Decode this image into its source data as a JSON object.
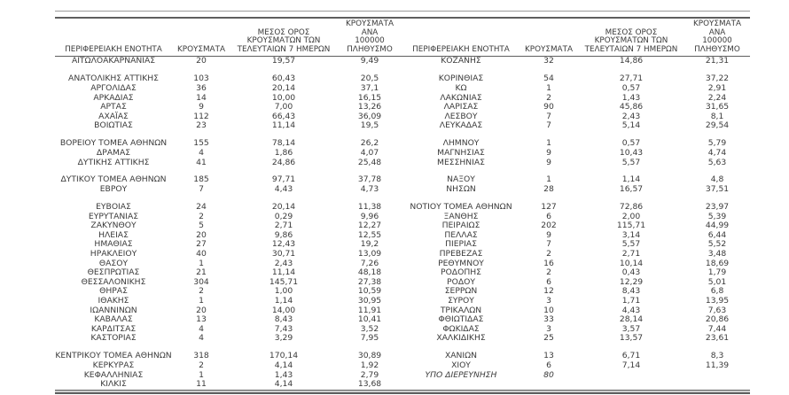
{
  "page": {
    "background": "#ffffff",
    "text_color": "#3a3a3a",
    "rule_color": "#5e5e5e"
  },
  "table": {
    "headers": {
      "region": "ΠΕΡΙΦΕΡΕΙΑΚΗ ΕΝΟΤΗΤΑ",
      "cases": "ΚΡΟΥΣΜΑΤΑ",
      "avg7": "ΜΕΣΟΣ ΟΡΟΣ\nΚΡΟΥΣΜΑΤΩΝ ΤΩΝ\nΤΕΛΕΥΤΑΙΩΝ 7 ΗΜΕΡΩΝ",
      "per100k": "ΚΡΟΥΣΜΑΤΑ ΑΝΑ\n100000 ΠΛΗΘΥΣΜΟ"
    },
    "rows": [
      {
        "left": [
          "ΑΙΤΩΛΟΑΚΑΡΝΑΝΙΑΣ",
          "20",
          "19,57",
          "9,49"
        ],
        "right": [
          "ΚΟΖΑΝΗΣ",
          "32",
          "14,86",
          "21,31"
        ]
      },
      {
        "spacer": true
      },
      {
        "left": [
          "ΑΝΑΤΟΛΙΚΗΣ ΑΤΤΙΚΗΣ",
          "103",
          "60,43",
          "20,5"
        ],
        "right": [
          "ΚΟΡΙΝΘΙΑΣ",
          "54",
          "27,71",
          "37,22"
        ]
      },
      {
        "left": [
          "ΑΡΓΟΛΙΔΑΣ",
          "36",
          "20,14",
          "37,1"
        ],
        "right": [
          "ΚΩ",
          "1",
          "0,57",
          "2,91"
        ]
      },
      {
        "left": [
          "ΑΡΚΑΔΙΑΣ",
          "14",
          "10,00",
          "16,15"
        ],
        "right": [
          "ΛΑΚΩΝΙΑΣ",
          "2",
          "1,43",
          "2,24"
        ]
      },
      {
        "left": [
          "ΑΡΤΑΣ",
          "9",
          "7,00",
          "13,26"
        ],
        "right": [
          "ΛΑΡΙΣΑΣ",
          "90",
          "45,86",
          "31,65"
        ]
      },
      {
        "left": [
          "ΑΧΑΪΑΣ",
          "112",
          "66,43",
          "36,09"
        ],
        "right": [
          "ΛΕΣΒΟΥ",
          "7",
          "2,43",
          "8,1"
        ]
      },
      {
        "left": [
          "ΒΟΙΩΤΙΑΣ",
          "23",
          "11,14",
          "19,5"
        ],
        "right": [
          "ΛΕΥΚΑΔΑΣ",
          "7",
          "5,14",
          "29,54"
        ]
      },
      {
        "spacer": true
      },
      {
        "left": [
          "ΒΟΡΕΙΟΥ ΤΟΜΕΑ ΑΘΗΝΩΝ",
          "155",
          "78,14",
          "26,2"
        ],
        "right": [
          "ΛΗΜΝΟΥ",
          "1",
          "0,57",
          "5,79"
        ]
      },
      {
        "left": [
          "ΔΡΑΜΑΣ",
          "4",
          "1,86",
          "4,07"
        ],
        "right": [
          "ΜΑΓΝΗΣΙΑΣ",
          "9",
          "10,43",
          "4,74"
        ]
      },
      {
        "left": [
          "ΔΥΤΙΚΗΣ ΑΤΤΙΚΗΣ",
          "41",
          "24,86",
          "25,48"
        ],
        "right": [
          "ΜΕΣΣΗΝΙΑΣ",
          "9",
          "5,57",
          "5,63"
        ]
      },
      {
        "spacer": true
      },
      {
        "left": [
          "ΔΥΤΙΚΟΥ ΤΟΜΕΑ ΑΘΗΝΩΝ",
          "185",
          "97,71",
          "37,78"
        ],
        "right": [
          "ΝΑΞΟΥ",
          "1",
          "1,14",
          "4,8"
        ]
      },
      {
        "left": [
          "ΕΒΡΟΥ",
          "7",
          "4,43",
          "4,73"
        ],
        "right": [
          "ΝΗΣΩΝ",
          "28",
          "16,57",
          "37,51"
        ]
      },
      {
        "spacer": true
      },
      {
        "left": [
          "ΕΥΒΟΙΑΣ",
          "24",
          "20,14",
          "11,38"
        ],
        "right": [
          "ΝΟΤΙΟΥ ΤΟΜΕΑ ΑΘΗΝΩΝ",
          "127",
          "72,86",
          "23,97"
        ]
      },
      {
        "left": [
          "ΕΥΡΥΤΑΝΙΑΣ",
          "2",
          "0,29",
          "9,96"
        ],
        "right": [
          "ΞΑΝΘΗΣ",
          "6",
          "2,00",
          "5,39"
        ]
      },
      {
        "left": [
          "ΖΑΚΥΝΘΟΥ",
          "5",
          "2,71",
          "12,27"
        ],
        "right": [
          "ΠΕΙΡΑΙΩΣ",
          "202",
          "115,71",
          "44,99"
        ]
      },
      {
        "left": [
          "ΗΛΕΙΑΣ",
          "20",
          "9,86",
          "12,55"
        ],
        "right": [
          "ΠΕΛΛΑΣ",
          "9",
          "3,14",
          "6,44"
        ]
      },
      {
        "left": [
          "ΗΜΑΘΙΑΣ",
          "27",
          "12,43",
          "19,2"
        ],
        "right": [
          "ΠΙΕΡΙΑΣ",
          "7",
          "5,57",
          "5,52"
        ]
      },
      {
        "left": [
          "ΗΡΑΚΛΕΙΟΥ",
          "40",
          "30,71",
          "13,09"
        ],
        "right": [
          "ΠΡΕΒΕΖΑΣ",
          "2",
          "2,71",
          "3,48"
        ]
      },
      {
        "left": [
          "ΘΑΣΟΥ",
          "1",
          "2,43",
          "7,26"
        ],
        "right": [
          "ΡΕΘΥΜΝΟΥ",
          "16",
          "10,14",
          "18,69"
        ]
      },
      {
        "left": [
          "ΘΕΣΠΡΩΤΙΑΣ",
          "21",
          "11,14",
          "48,18"
        ],
        "right": [
          "ΡΟΔΟΠΗΣ",
          "2",
          "0,43",
          "1,79"
        ]
      },
      {
        "left": [
          "ΘΕΣΣΑΛΟΝΙΚΗΣ",
          "304",
          "145,71",
          "27,38"
        ],
        "right": [
          "ΡΟΔΟΥ",
          "6",
          "12,29",
          "5,01"
        ]
      },
      {
        "left": [
          "ΘΗΡΑΣ",
          "2",
          "1,00",
          "10,59"
        ],
        "right": [
          "ΣΕΡΡΩΝ",
          "12",
          "8,43",
          "6,8"
        ]
      },
      {
        "left": [
          "ΙΘΑΚΗΣ",
          "1",
          "1,14",
          "30,95"
        ],
        "right": [
          "ΣΥΡΟΥ",
          "3",
          "1,71",
          "13,95"
        ]
      },
      {
        "left": [
          "ΙΩΑΝΝΙΝΩΝ",
          "20",
          "14,00",
          "11,91"
        ],
        "right": [
          "ΤΡΙΚΑΛΩΝ",
          "10",
          "4,43",
          "7,63"
        ]
      },
      {
        "left": [
          "ΚΑΒΑΛΑΣ",
          "13",
          "8,43",
          "10,41"
        ],
        "right": [
          "ΦΘΙΩΤΙΔΑΣ",
          "33",
          "28,14",
          "20,86"
        ]
      },
      {
        "left": [
          "ΚΑΡΔΙΤΣΑΣ",
          "4",
          "7,43",
          "3,52"
        ],
        "right": [
          "ΦΩΚΙΔΑΣ",
          "3",
          "3,57",
          "7,44"
        ]
      },
      {
        "left": [
          "ΚΑΣΤΟΡΙΑΣ",
          "4",
          "3,29",
          "7,95"
        ],
        "right": [
          "ΧΑΛΚΙΔΙΚΗΣ",
          "25",
          "13,57",
          "23,61"
        ]
      },
      {
        "spacer": true
      },
      {
        "left": [
          "ΚΕΝΤΡΙΚΟΥ ΤΟΜΕΑ ΑΘΗΝΩΝ",
          "318",
          "170,14",
          "30,89"
        ],
        "right": [
          "ΧΑΝΙΩΝ",
          "13",
          "6,71",
          "8,3"
        ]
      },
      {
        "left": [
          "ΚΕΡΚΥΡΑΣ",
          "2",
          "4,14",
          "1,92"
        ],
        "right": [
          "ΧΙΟΥ",
          "6",
          "7,14",
          "11,39"
        ]
      },
      {
        "left": [
          "ΚΕΦΑΛΛΗΝΙΑΣ",
          "1",
          "1,43",
          "2,79"
        ],
        "right": [
          "ΥΠΟ ΔΙΕΡΕΥΝΗΣΗ",
          "80",
          "",
          ""
        ],
        "right_italic": true
      },
      {
        "left": [
          "ΚΙΛΚΙΣ",
          "11",
          "4,14",
          "13,68"
        ],
        "right": [
          "",
          "",
          "",
          ""
        ]
      }
    ]
  }
}
